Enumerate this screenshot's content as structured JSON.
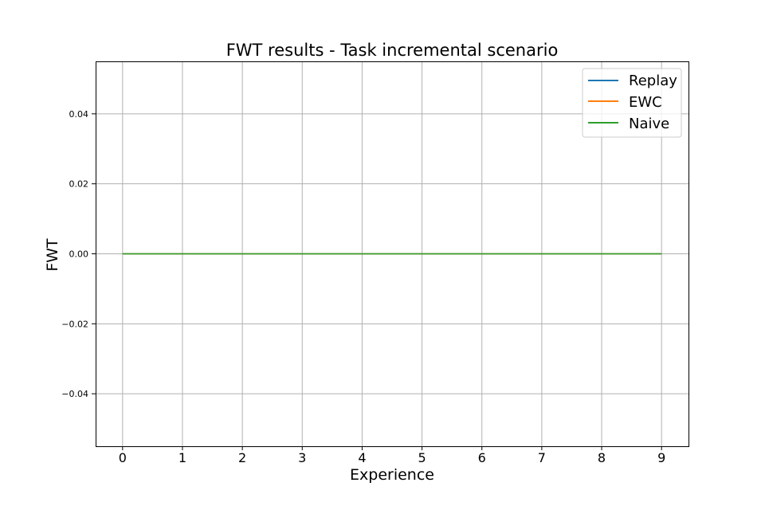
{
  "chart_data": {
    "type": "line",
    "title": "FWT results - Task incremental scenario",
    "xlabel": "Experience",
    "ylabel": "FWT",
    "x": [
      0,
      1,
      2,
      3,
      4,
      5,
      6,
      7,
      8,
      9
    ],
    "xticks": [
      0,
      1,
      2,
      3,
      4,
      5,
      6,
      7,
      8,
      9
    ],
    "xtick_labels": [
      "0",
      "1",
      "2",
      "3",
      "4",
      "5",
      "6",
      "7",
      "8",
      "9"
    ],
    "yticks": [
      -0.04,
      -0.02,
      0.0,
      0.02,
      0.04
    ],
    "ytick_labels": [
      "−0.04",
      "−0.02",
      "0.00",
      "0.02",
      "0.04"
    ],
    "xlim": [
      -0.45,
      9.45
    ],
    "ylim": [
      -0.055,
      0.055
    ],
    "grid": true,
    "legend_position": "top-right",
    "series": [
      {
        "name": "Replay",
        "color": "#1f77b4",
        "values": [
          0,
          0,
          0,
          0,
          0,
          0,
          0,
          0,
          0,
          0
        ]
      },
      {
        "name": "EWC",
        "color": "#ff7f0e",
        "values": [
          0,
          0,
          0,
          0,
          0,
          0,
          0,
          0,
          0,
          0
        ]
      },
      {
        "name": "Naive",
        "color": "#2ca02c",
        "values": [
          0,
          0,
          0,
          0,
          0,
          0,
          0,
          0,
          0,
          0
        ]
      }
    ]
  }
}
